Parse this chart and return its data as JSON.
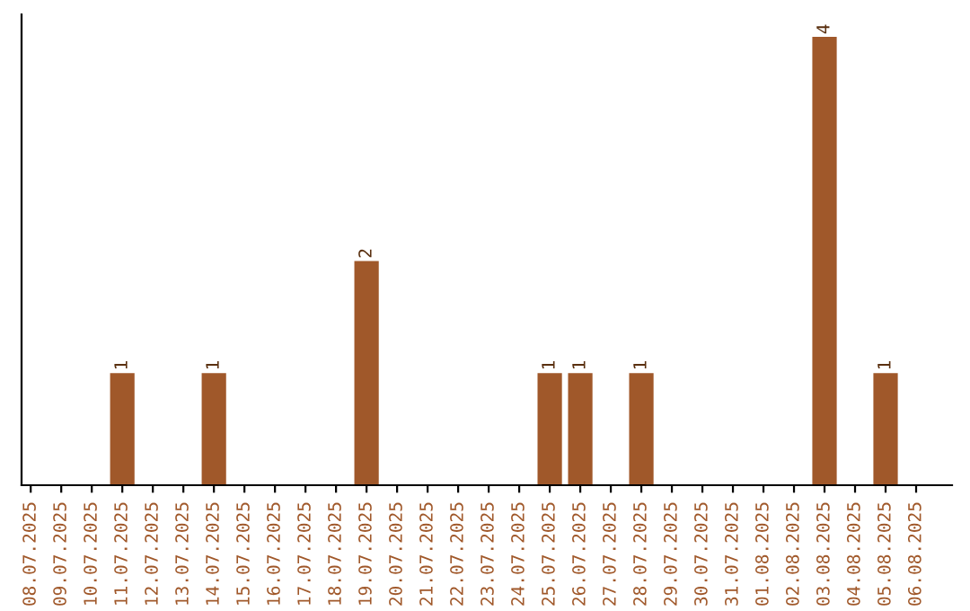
{
  "chart_data": {
    "type": "bar",
    "categories": [
      "08.07.2025",
      "09.07.2025",
      "10.07.2025",
      "11.07.2025",
      "12.07.2025",
      "13.07.2025",
      "14.07.2025",
      "15.07.2025",
      "16.07.2025",
      "17.07.2025",
      "18.07.2025",
      "19.07.2025",
      "20.07.2025",
      "21.07.2025",
      "22.07.2025",
      "23.07.2025",
      "24.07.2025",
      "25.07.2025",
      "26.07.2025",
      "27.07.2025",
      "28.07.2025",
      "29.07.2025",
      "30.07.2025",
      "31.07.2025",
      "01.08.2025",
      "02.08.2025",
      "03.08.2025",
      "04.08.2025",
      "05.08.2025",
      "06.08.2025"
    ],
    "values": [
      0,
      0,
      0,
      1,
      0,
      0,
      1,
      0,
      0,
      0,
      0,
      2,
      0,
      0,
      0,
      0,
      0,
      1,
      1,
      0,
      1,
      0,
      0,
      0,
      0,
      0,
      4,
      0,
      1,
      0
    ],
    "value_labels": [
      null,
      null,
      null,
      "1",
      null,
      null,
      "1",
      null,
      null,
      null,
      null,
      "2",
      null,
      null,
      null,
      null,
      null,
      "1",
      "1",
      null,
      "1",
      null,
      null,
      null,
      null,
      null,
      "4",
      null,
      "1",
      null
    ],
    "color": "#a0582a",
    "tick_labels": "x",
    "grid": false,
    "legend": false
  }
}
